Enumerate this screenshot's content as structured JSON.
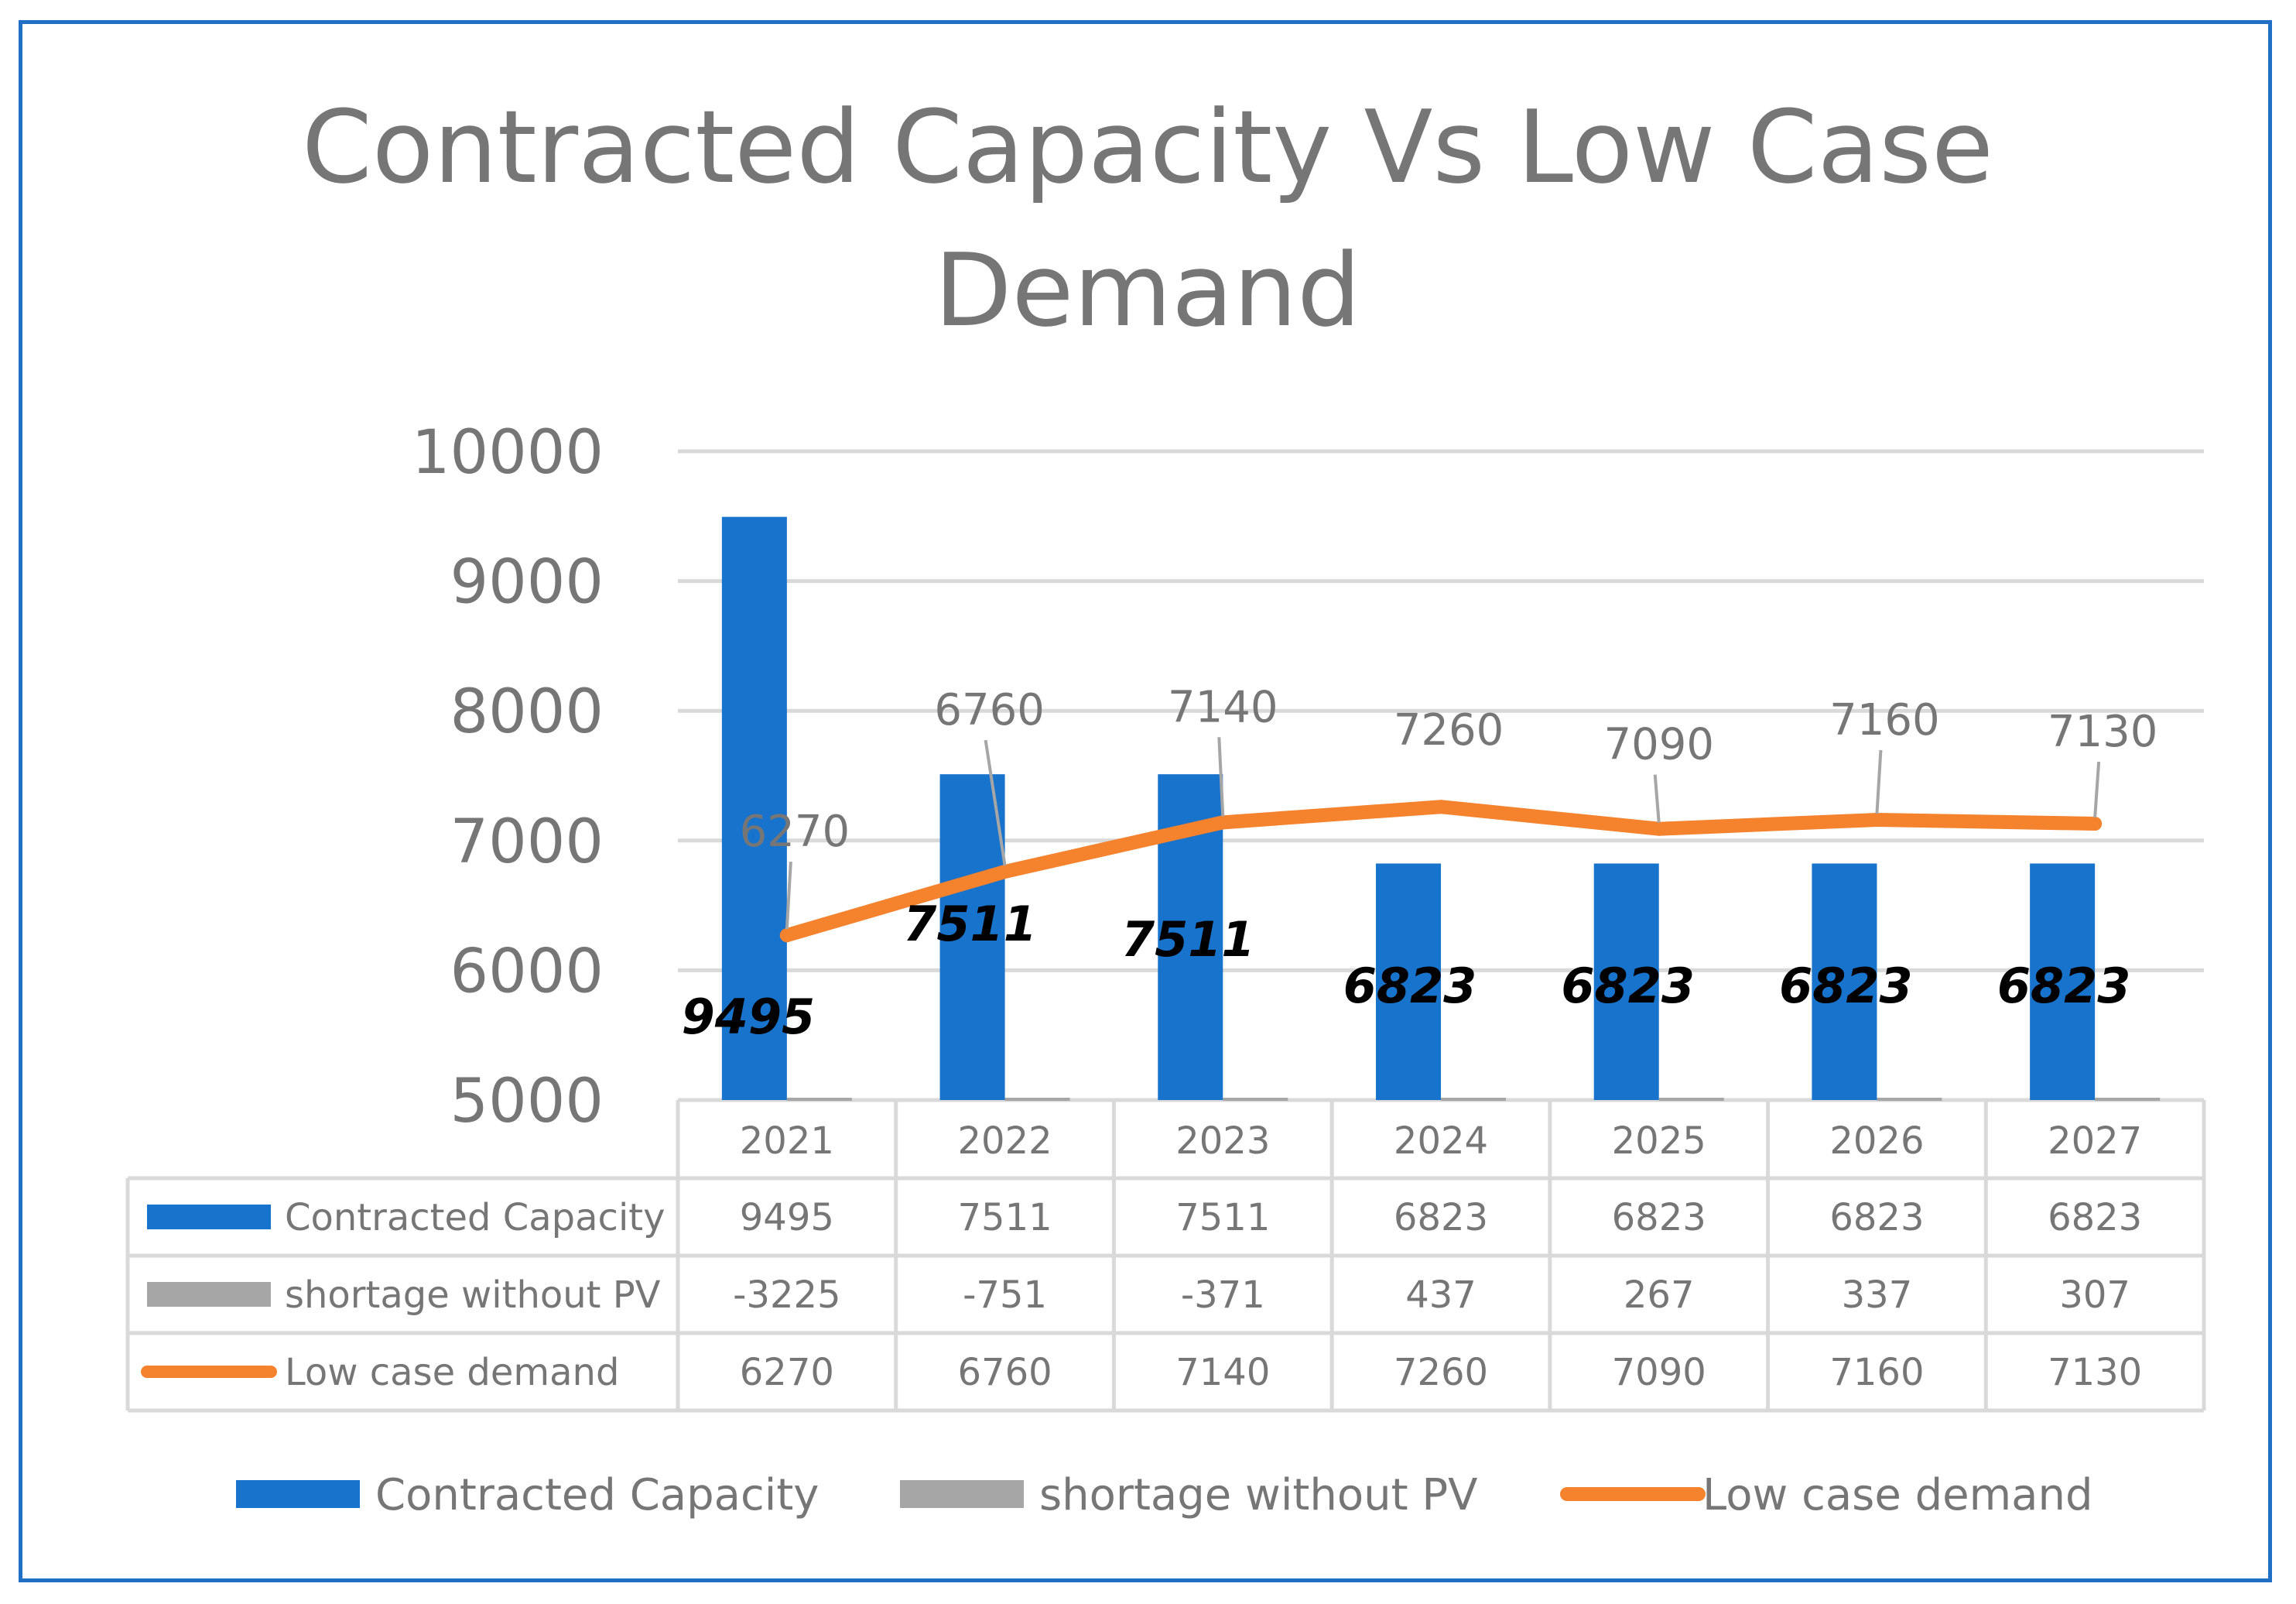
{
  "chart_data": {
    "type": "bar",
    "title_lines": [
      "Contracted Capacity Vs Low Case",
      "Demand"
    ],
    "categories": [
      "2021",
      "2022",
      "2023",
      "2024",
      "2025",
      "2026",
      "2027"
    ],
    "ylim": [
      5000,
      10000
    ],
    "yticks": [
      "5000",
      "6000",
      "7000",
      "8000",
      "9000",
      "10000"
    ],
    "grid": true,
    "legend_position": "bottom",
    "data_table": true,
    "series": [
      {
        "name": "Contracted Capacity",
        "kind": "bar",
        "color": "#1873cc",
        "values": [
          9495,
          7511,
          7511,
          6823,
          6823,
          6823,
          6823
        ]
      },
      {
        "name": "shortage without PV",
        "kind": "bar",
        "color": "#a6a6a6",
        "values": [
          -3225,
          -751,
          -371,
          437,
          267,
          337,
          307
        ]
      },
      {
        "name": "Low case demand",
        "kind": "line",
        "color": "#f5822d",
        "values": [
          6270,
          6760,
          7140,
          7260,
          7090,
          7160,
          7130
        ]
      }
    ]
  }
}
